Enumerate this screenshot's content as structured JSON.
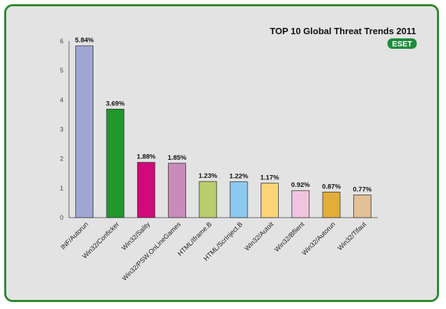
{
  "chart_data": {
    "type": "bar",
    "title": "TOP 10 Global Threat Trends 2011",
    "categories": [
      "INF/Autorun",
      "Win32/Conficker",
      "Win32/Sality",
      "Win32/PSW.OnLineGames",
      "HTML/Iframe.B",
      "HTML/ScrInject.B",
      "Win32/Autoit",
      "Win32/Bflient",
      "Win32/Autorun",
      "Win32/Tifaut"
    ],
    "values": [
      5.84,
      3.69,
      1.88,
      1.85,
      1.23,
      1.22,
      1.17,
      0.92,
      0.87,
      0.77
    ],
    "data_labels": [
      "5.84%",
      "3.69%",
      "1.88%",
      "1.85%",
      "1.23%",
      "1.22%",
      "1.17%",
      "0.92%",
      "0.87%",
      "0.77%"
    ],
    "bar_colors": [
      "#a0a6d2",
      "#22972b",
      "#cf0a7a",
      "#c98bba",
      "#b9cc6e",
      "#8cc9ee",
      "#fed47a",
      "#f0c3df",
      "#e3ad39",
      "#e2c098"
    ],
    "ylim": [
      0,
      6
    ],
    "yticks": [
      "0",
      "1",
      "2",
      "3",
      "4",
      "5",
      "6"
    ],
    "xlabel": "",
    "ylabel": "",
    "grid": false,
    "legend": "none"
  },
  "logo": {
    "text": "ESET",
    "color": "#1e8b3c"
  }
}
